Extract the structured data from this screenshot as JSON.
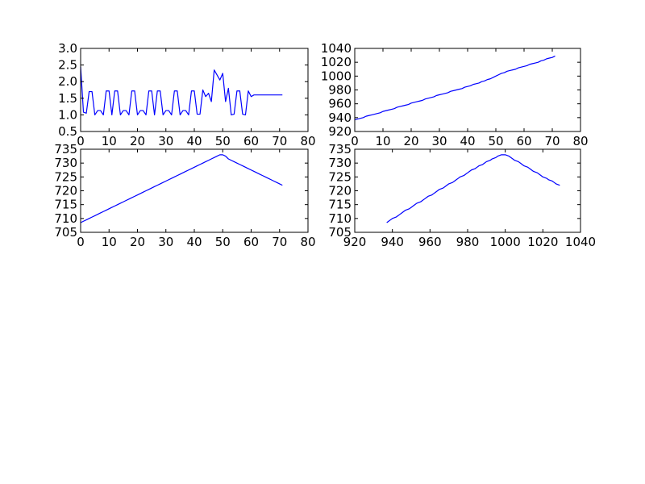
{
  "chart_data": [
    {
      "type": "line",
      "title": "",
      "xlabel": "",
      "ylabel": "",
      "xlim": [
        0,
        80
      ],
      "ylim": [
        0.5,
        3.0
      ],
      "xticks": [
        "0",
        "10",
        "20",
        "30",
        "40",
        "50",
        "60",
        "70",
        "80"
      ],
      "yticks": [
        "0.5",
        "1.0",
        "1.5",
        "2.0",
        "2.5",
        "3.0"
      ],
      "grid": false,
      "color": "#0000ff",
      "series": [
        {
          "x": [
            0,
            1,
            2,
            3,
            4,
            5,
            6,
            7,
            8,
            9,
            10,
            11,
            12,
            13,
            14,
            15,
            16,
            17,
            18,
            19,
            20,
            21,
            22,
            23,
            24,
            25,
            26,
            27,
            28,
            29,
            30,
            31,
            32,
            33,
            34,
            35,
            36,
            37,
            38,
            39,
            40,
            41,
            42,
            43,
            44,
            45,
            46,
            47,
            48,
            49,
            50,
            51,
            52,
            53,
            54,
            55,
            56,
            57,
            58,
            59,
            60,
            61,
            62,
            63,
            64,
            65,
            66,
            67,
            68,
            69,
            70,
            71
          ],
          "y": [
            2.45,
            1.08,
            1.05,
            1.7,
            1.7,
            1.0,
            1.13,
            1.13,
            1.0,
            1.72,
            1.72,
            1.0,
            1.72,
            1.72,
            1.0,
            1.13,
            1.13,
            1.0,
            1.72,
            1.72,
            1.0,
            1.13,
            1.13,
            1.0,
            1.72,
            1.72,
            1.0,
            1.72,
            1.72,
            1.0,
            1.13,
            1.13,
            1.0,
            1.72,
            1.72,
            1.0,
            1.13,
            1.13,
            1.0,
            1.72,
            1.72,
            1.02,
            1.02,
            1.75,
            1.55,
            1.65,
            1.4,
            2.35,
            2.2,
            2.05,
            2.25,
            1.4,
            1.8,
            1.0,
            1.02,
            1.72,
            1.72,
            1.02,
            1.0,
            1.72,
            1.55,
            1.6,
            1.6,
            1.6,
            1.6,
            1.6,
            1.6,
            1.6,
            1.6,
            1.6,
            1.6,
            1.6
          ]
        }
      ]
    },
    {
      "type": "line",
      "title": "",
      "xlabel": "",
      "ylabel": "",
      "xlim": [
        0,
        80
      ],
      "ylim": [
        920,
        1040
      ],
      "xticks": [
        "0",
        "10",
        "20",
        "30",
        "40",
        "50",
        "60",
        "70",
        "80"
      ],
      "yticks": [
        "920",
        "940",
        "960",
        "980",
        "1000",
        "1020",
        "1040"
      ],
      "grid": false,
      "color": "#0000ff",
      "series": [
        {
          "x": [
            0,
            1,
            2,
            3,
            4,
            5,
            6,
            7,
            8,
            9,
            10,
            11,
            12,
            13,
            14,
            15,
            16,
            17,
            18,
            19,
            20,
            21,
            22,
            23,
            24,
            25,
            26,
            27,
            28,
            29,
            30,
            31,
            32,
            33,
            34,
            35,
            36,
            37,
            38,
            39,
            40,
            41,
            42,
            43,
            44,
            45,
            46,
            47,
            48,
            49,
            50,
            51,
            52,
            53,
            54,
            55,
            56,
            57,
            58,
            59,
            60,
            61,
            62,
            63,
            64,
            65,
            66,
            67,
            68,
            69,
            70,
            71
          ],
          "y": [
            937,
            938,
            939,
            940,
            942,
            943,
            944,
            945,
            946,
            947,
            949,
            950,
            951,
            952,
            953,
            955,
            956,
            957,
            958,
            959,
            961,
            962,
            963,
            964,
            965,
            967,
            968,
            969,
            970,
            972,
            973,
            974,
            975,
            976,
            978,
            979,
            980,
            981,
            982,
            984,
            985,
            986,
            988,
            989,
            990,
            992,
            993,
            995,
            996,
            998,
            1000,
            1002,
            1004,
            1005,
            1007,
            1008,
            1009,
            1010,
            1012,
            1013,
            1014,
            1015,
            1017,
            1018,
            1019,
            1020,
            1022,
            1023,
            1025,
            1026,
            1027,
            1029
          ]
        }
      ]
    },
    {
      "type": "line",
      "title": "",
      "xlabel": "",
      "ylabel": "",
      "xlim": [
        0,
        80
      ],
      "ylim": [
        705,
        735
      ],
      "xticks": [
        "0",
        "10",
        "20",
        "30",
        "40",
        "50",
        "60",
        "70",
        "80"
      ],
      "yticks": [
        "705",
        "710",
        "715",
        "720",
        "725",
        "730",
        "735"
      ],
      "grid": false,
      "color": "#0000ff",
      "series": [
        {
          "x": [
            0,
            1,
            2,
            3,
            4,
            5,
            6,
            7,
            8,
            9,
            10,
            11,
            12,
            13,
            14,
            15,
            16,
            17,
            18,
            19,
            20,
            21,
            22,
            23,
            24,
            25,
            26,
            27,
            28,
            29,
            30,
            31,
            32,
            33,
            34,
            35,
            36,
            37,
            38,
            39,
            40,
            41,
            42,
            43,
            44,
            45,
            46,
            47,
            48,
            49,
            50,
            51,
            52,
            53,
            54,
            55,
            56,
            57,
            58,
            59,
            60,
            61,
            62,
            63,
            64,
            65,
            66,
            67,
            68,
            69,
            70,
            71
          ],
          "y": [
            708.5,
            709,
            709.5,
            710,
            710.5,
            711,
            711.5,
            712,
            712.5,
            713,
            713.5,
            714,
            714.5,
            715,
            715.5,
            716,
            716.5,
            717,
            717.5,
            718,
            718.5,
            719,
            719.5,
            720,
            720.5,
            721,
            721.5,
            722,
            722.5,
            723,
            723.5,
            724,
            724.5,
            725,
            725.5,
            726,
            726.5,
            727,
            727.5,
            728,
            728.5,
            729,
            729.5,
            730,
            730.5,
            731,
            731.5,
            732,
            732.5,
            733,
            733,
            732.5,
            731.5,
            731,
            730.5,
            730,
            729.5,
            729,
            728.5,
            728,
            727.5,
            727,
            726.5,
            726,
            725.5,
            725,
            724.5,
            724,
            723.5,
            723,
            722.5,
            722
          ]
        }
      ]
    },
    {
      "type": "line",
      "title": "",
      "xlabel": "",
      "ylabel": "",
      "xlim": [
        920,
        1040
      ],
      "ylim": [
        705,
        735
      ],
      "xticks": [
        "920",
        "940",
        "960",
        "980",
        "1000",
        "1020",
        "1040"
      ],
      "yticks": [
        "705",
        "710",
        "715",
        "720",
        "725",
        "730",
        "735"
      ],
      "grid": false,
      "color": "#0000ff",
      "series": [
        {
          "x": [
            937,
            938,
            939,
            940,
            942,
            943,
            944,
            945,
            946,
            947,
            949,
            950,
            951,
            952,
            953,
            955,
            956,
            957,
            958,
            959,
            961,
            962,
            963,
            964,
            965,
            967,
            968,
            969,
            970,
            972,
            973,
            974,
            975,
            976,
            978,
            979,
            980,
            981,
            982,
            984,
            985,
            986,
            988,
            989,
            990,
            992,
            993,
            995,
            996,
            998,
            1000,
            1002,
            1004,
            1005,
            1007,
            1008,
            1009,
            1010,
            1012,
            1013,
            1014,
            1015,
            1017,
            1018,
            1019,
            1020,
            1022,
            1023,
            1025,
            1026,
            1027,
            1029
          ],
          "y": [
            708.5,
            709,
            709.5,
            710,
            710.5,
            711,
            711.5,
            712,
            712.5,
            713,
            713.5,
            714,
            714.5,
            715,
            715.5,
            716,
            716.5,
            717,
            717.5,
            718,
            718.5,
            719,
            719.5,
            720,
            720.5,
            721,
            721.5,
            722,
            722.5,
            723,
            723.5,
            724,
            724.5,
            725,
            725.5,
            726,
            726.5,
            727,
            727.5,
            728,
            728.5,
            729,
            729.5,
            730,
            730.5,
            731,
            731.5,
            732,
            732.5,
            733,
            733,
            732.5,
            731.5,
            731,
            730.5,
            730,
            729.5,
            729,
            728.5,
            728,
            727.5,
            727,
            726.5,
            726,
            725.5,
            725,
            724.5,
            724,
            723.5,
            723,
            722.5,
            722
          ]
        }
      ]
    }
  ]
}
